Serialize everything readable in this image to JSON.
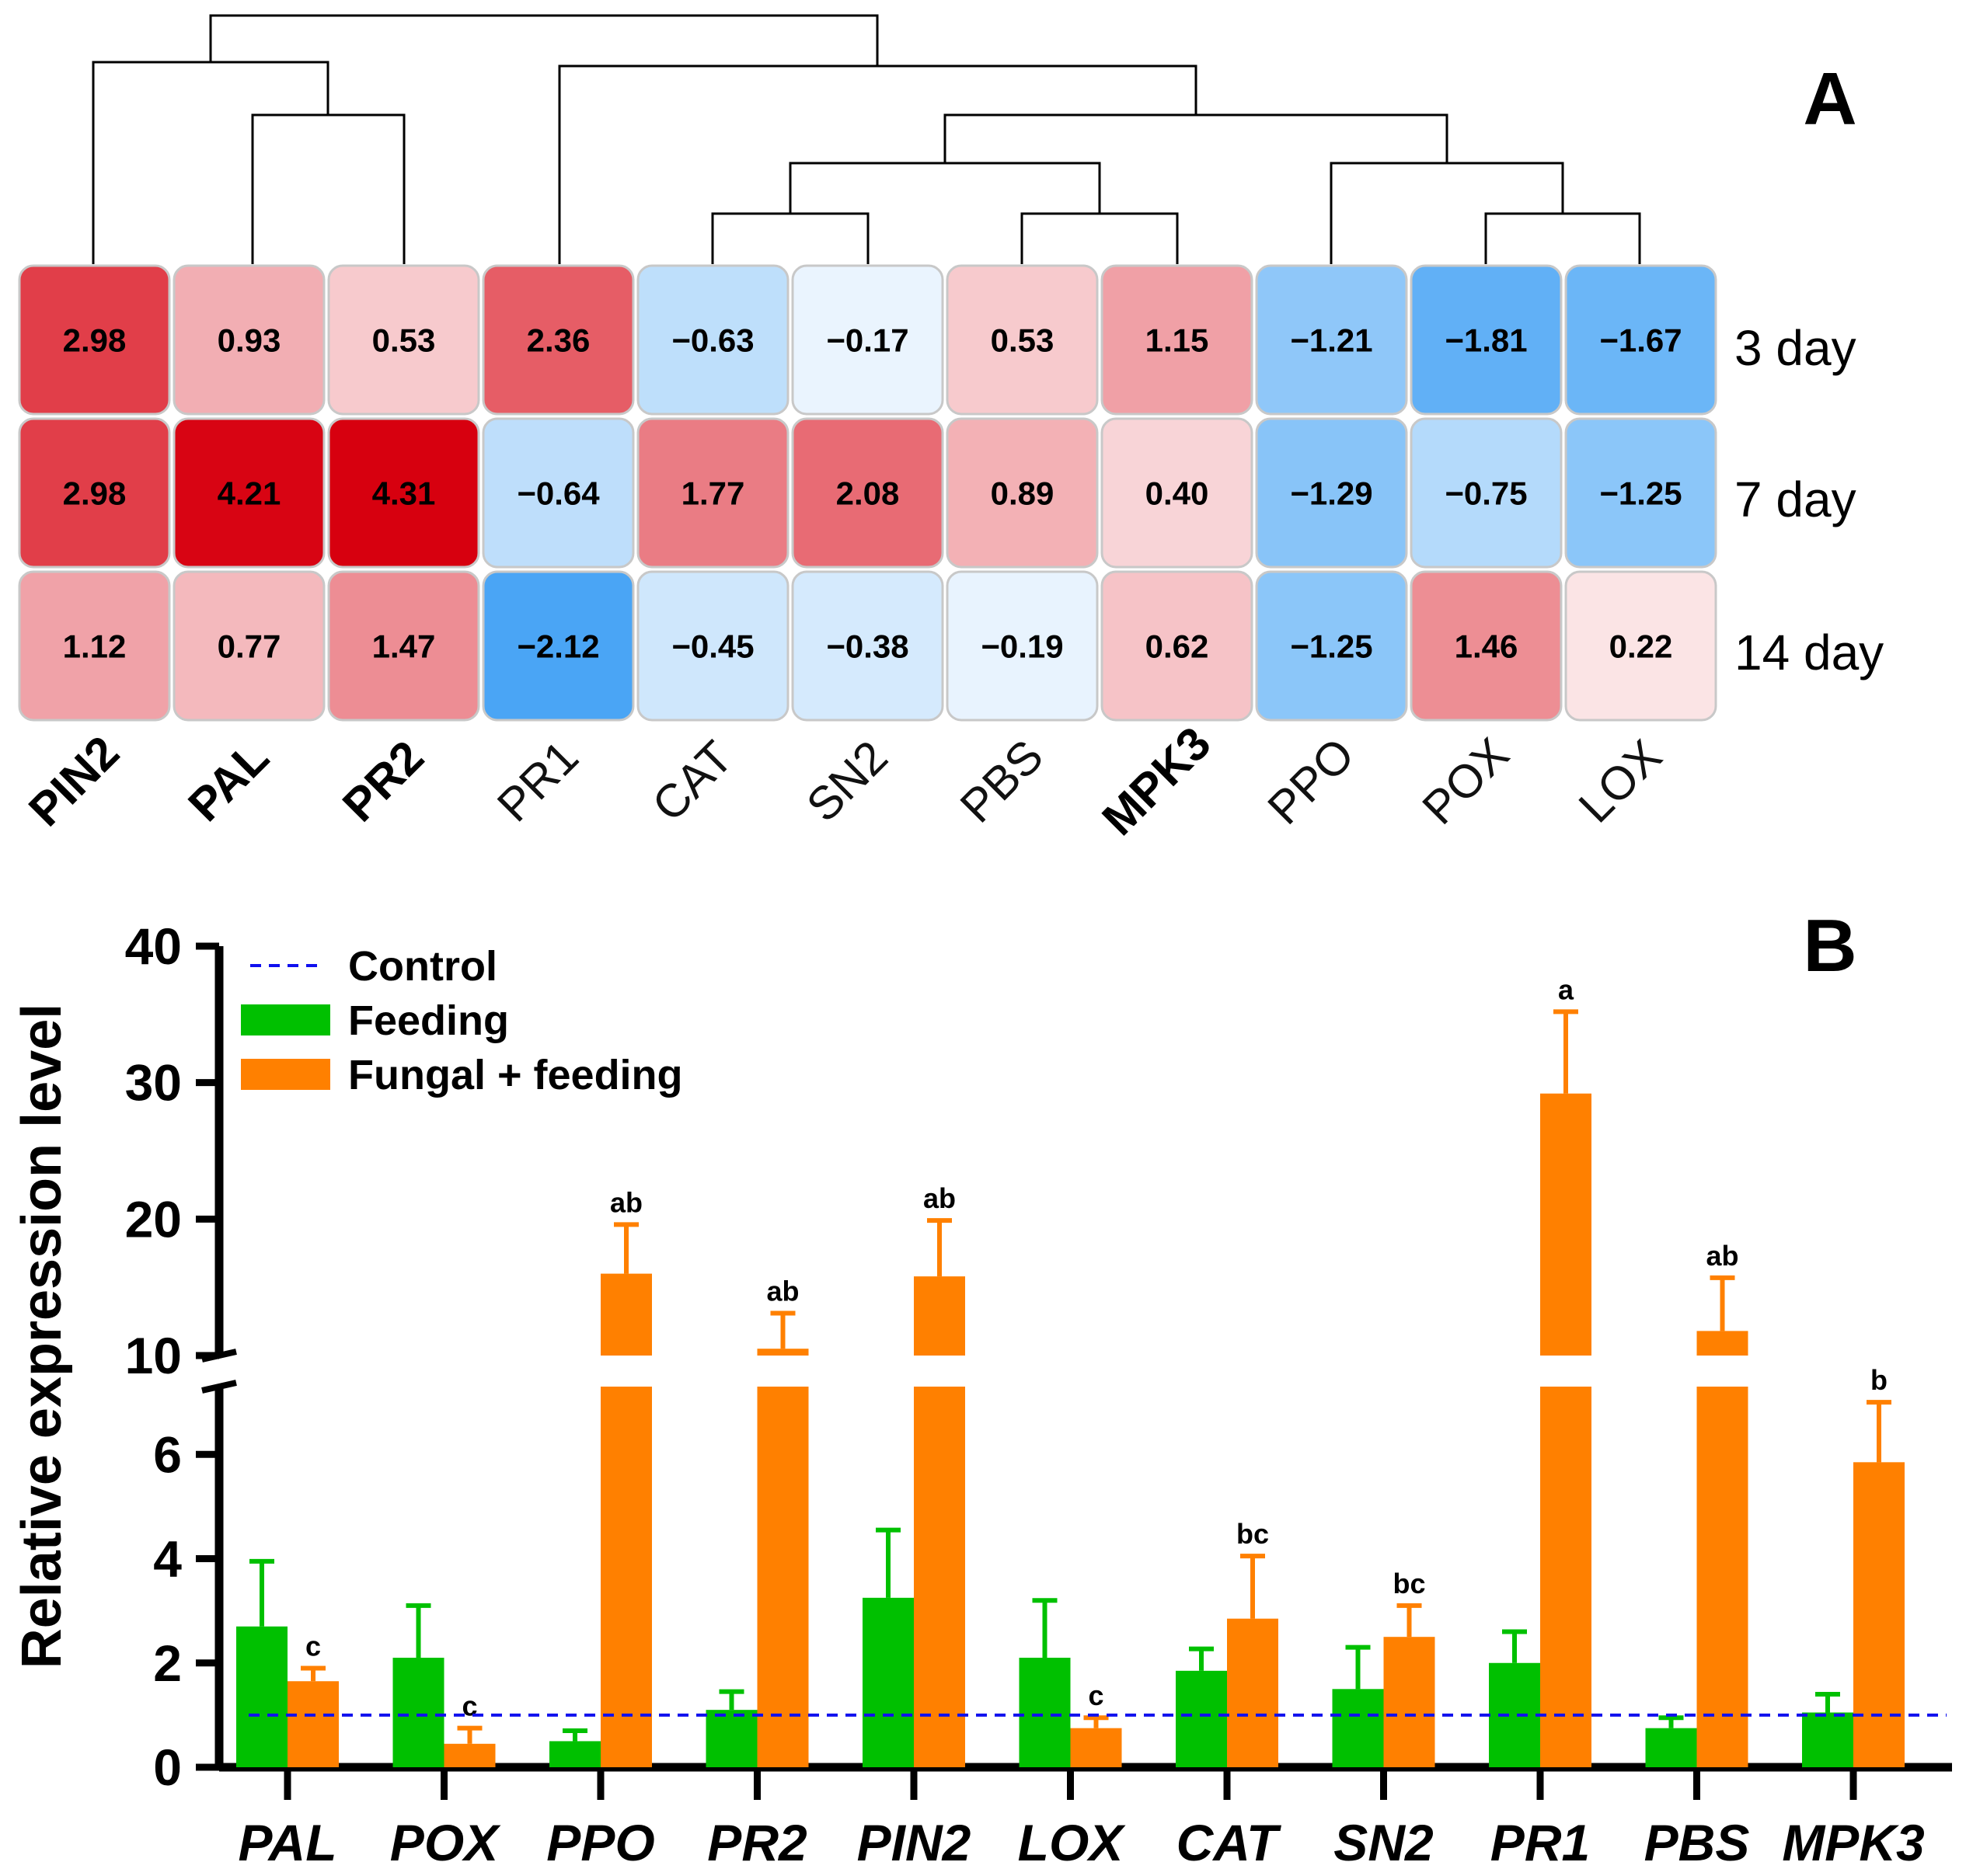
{
  "chart_data": [
    {
      "type": "heatmap",
      "panel_label": "A",
      "columns": [
        {
          "label": "PIN2",
          "bold": true
        },
        {
          "label": "PAL",
          "bold": true
        },
        {
          "label": "PR2",
          "bold": true
        },
        {
          "label": "PR1",
          "bold": false
        },
        {
          "label": "CAT",
          "bold": false
        },
        {
          "label": "SN2",
          "bold": false
        },
        {
          "label": "PBS",
          "bold": false
        },
        {
          "label": "MPK3",
          "bold": true
        },
        {
          "label": "PPO",
          "bold": false
        },
        {
          "label": "POX",
          "bold": false
        },
        {
          "label": "LOX",
          "bold": false
        }
      ],
      "rows": [
        "3 day",
        "7 day",
        "14 day"
      ],
      "values": [
        [
          2.98,
          0.93,
          0.53,
          2.36,
          -0.63,
          -0.17,
          0.53,
          1.15,
          -1.21,
          -1.81,
          -1.67
        ],
        [
          2.98,
          4.21,
          4.31,
          -0.64,
          1.77,
          2.08,
          0.89,
          0.4,
          -1.29,
          -0.75,
          -1.25
        ],
        [
          1.12,
          0.77,
          1.47,
          -2.12,
          -0.45,
          -0.38,
          -0.19,
          0.62,
          -1.25,
          1.46,
          0.22
        ]
      ],
      "value_labels": [
        [
          "2.98",
          "0.93",
          "0.53",
          "2.36",
          "−0.63",
          "−0.17",
          "0.53",
          "1.15",
          "−1.21",
          "−1.81",
          "−1.67"
        ],
        [
          "2.98",
          "4.21",
          "4.31",
          "−0.64",
          "1.77",
          "2.08",
          "0.89",
          "0.40",
          "−1.29",
          "−0.75",
          "−1.25"
        ],
        [
          "1.12",
          "0.77",
          "1.47",
          "−2.12",
          "−0.45",
          "−0.38",
          "−0.19",
          "0.62",
          "−1.25",
          "1.46",
          "0.22"
        ]
      ],
      "colors": {
        "positive": "#d7000f",
        "negative": "#4aa5f5",
        "neutral": "#ffffff"
      },
      "dendrogram": "column clustering: ((PIN2,(PAL,PR2)),(PR1,(((CAT,SN2),(PBS,MPK3)),(PPO,(POX,LOX)))))"
    },
    {
      "type": "bar",
      "panel_label": "B",
      "ylabel": "Relative expression level",
      "y_axis_break": {
        "lower_range": [
          0,
          7.3
        ],
        "upper_range": [
          10,
          40
        ]
      },
      "yticks": [
        0,
        2,
        4,
        6,
        10,
        20,
        30,
        40
      ],
      "categories": [
        "PAL",
        "POX",
        "PPO",
        "PR2",
        "PIN2",
        "LOX",
        "CAT",
        "SN2",
        "PR1",
        "PBS",
        "MPK3"
      ],
      "control_level": 1,
      "legend": [
        "Control",
        "Feeding",
        "Fungal + feeding"
      ],
      "series": [
        {
          "name": "Feeding",
          "color": "#00c000",
          "values": [
            2.7,
            2.1,
            0.5,
            1.1,
            3.25,
            2.1,
            1.85,
            1.5,
            2.0,
            0.75,
            1.05
          ],
          "errors": [
            1.25,
            1.0,
            0.2,
            0.35,
            1.3,
            1.1,
            0.42,
            0.8,
            0.6,
            0.2,
            0.35
          ],
          "significance": [
            "",
            "",
            "",
            "",
            "",
            "",
            "",
            "",
            "",
            "",
            ""
          ]
        },
        {
          "name": "Fungal + feeding",
          "color": "#ff8000",
          "values": [
            1.65,
            0.45,
            16.0,
            10.5,
            15.8,
            0.75,
            2.85,
            2.5,
            29.2,
            11.8,
            5.85
          ],
          "errors": [
            0.25,
            0.3,
            3.6,
            2.6,
            4.1,
            0.2,
            1.2,
            0.6,
            6.0,
            3.9,
            1.15
          ],
          "significance": [
            "c",
            "c",
            "ab",
            "ab",
            "ab",
            "c",
            "bc",
            "bc",
            "a",
            "ab",
            "b"
          ]
        }
      ]
    }
  ]
}
